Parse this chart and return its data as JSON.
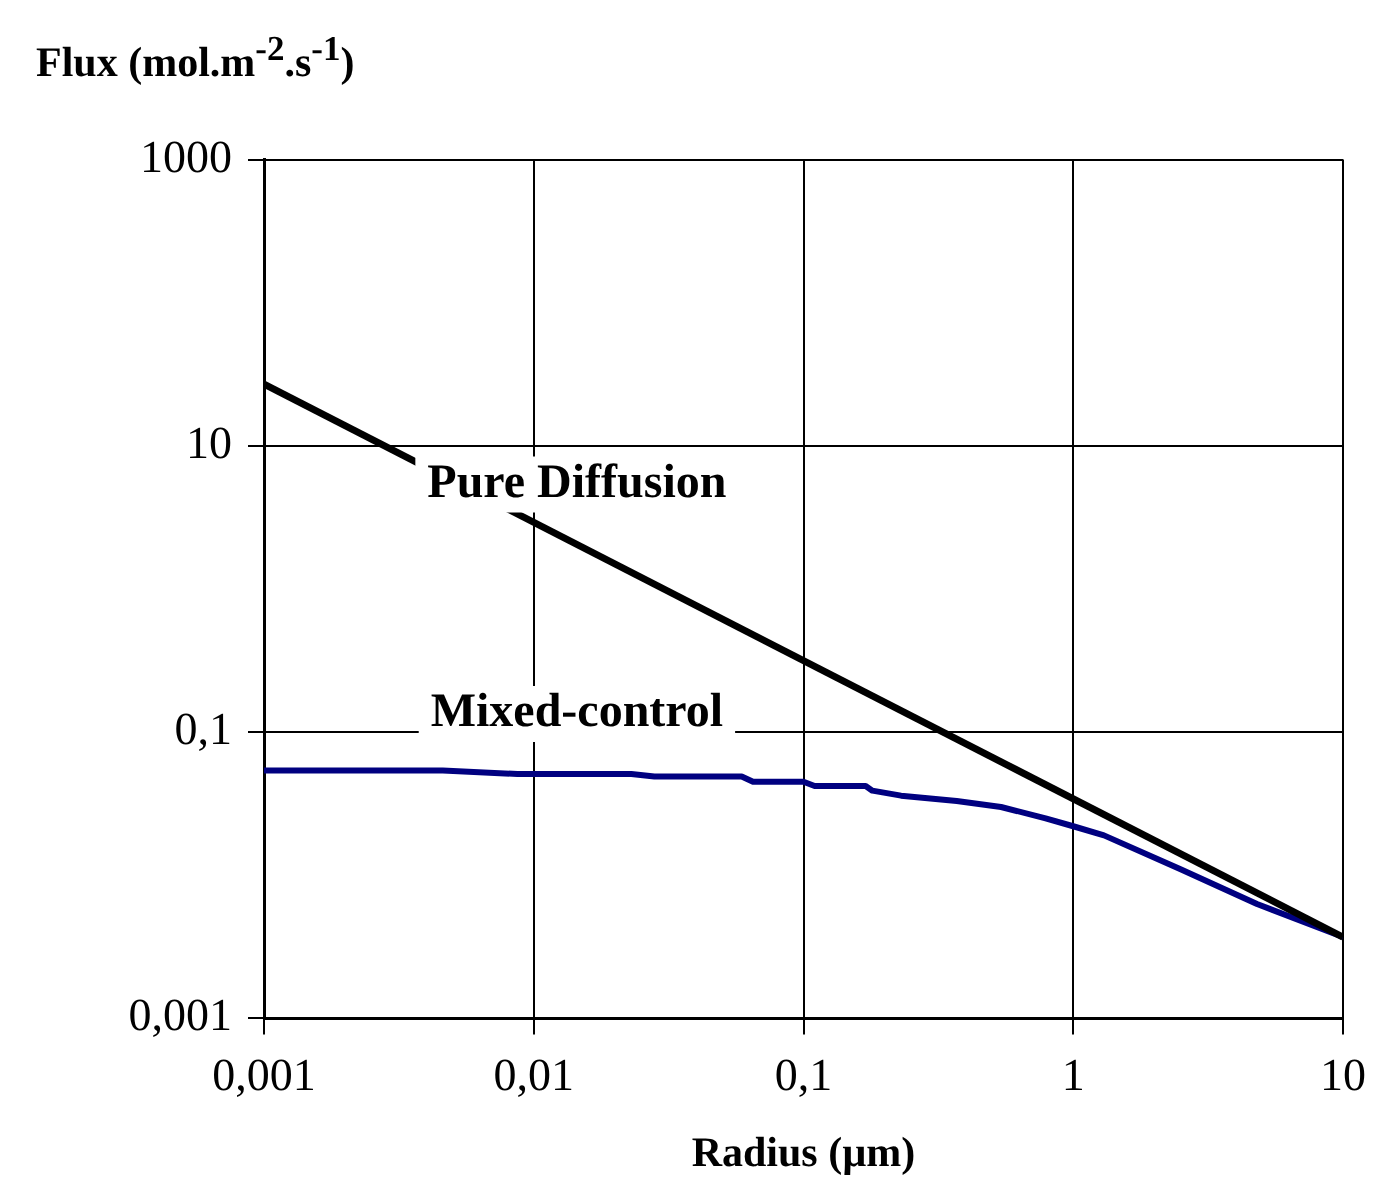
{
  "chart_data": {
    "type": "line",
    "ylabel": "Flux (mol.m$^{-2}$.s$^{-1}$)",
    "xlabel": "Radius (µm)",
    "log": "xy",
    "grid": true,
    "legend": false,
    "marker": "none",
    "line_style": "solid",
    "xlim": [
      0.001,
      10
    ],
    "xticks": [
      {
        "value": 0.001,
        "label": "0,001"
      },
      {
        "value": 0.01,
        "label": "0,01"
      },
      {
        "value": 0.1,
        "label": "0,1"
      },
      1,
      10
    ],
    "ylim": [
      0.001,
      1000
    ],
    "yticks": [
      {
        "value": 0.001,
        "label": "0,001"
      },
      {
        "value": 0.1,
        "label": "0,1"
      },
      10,
      1000
    ],
    "series": [
      {
        "name": "Pure Diffusion",
        "color": "#000000",
        "x": [
          0.001,
          10
        ],
        "values": [
          27,
          0.0037
        ]
      },
      {
        "name": "Mixed-control",
        "color": "#000080",
        "x": [
          0.001,
          0.0046,
          0.0087,
          0.023,
          0.028,
          0.059,
          0.065,
          0.1,
          0.11,
          0.17,
          0.18,
          0.23,
          0.37,
          0.54,
          0.79,
          1.0,
          1.3,
          2.5,
          4.8,
          10
        ],
        "values": [
          0.054,
          0.054,
          0.051,
          0.051,
          0.049,
          0.049,
          0.045,
          0.045,
          0.042,
          0.042,
          0.039,
          0.036,
          0.033,
          0.03,
          0.025,
          0.022,
          0.019,
          0.011,
          0.0063,
          0.0037
        ]
      }
    ]
  }
}
